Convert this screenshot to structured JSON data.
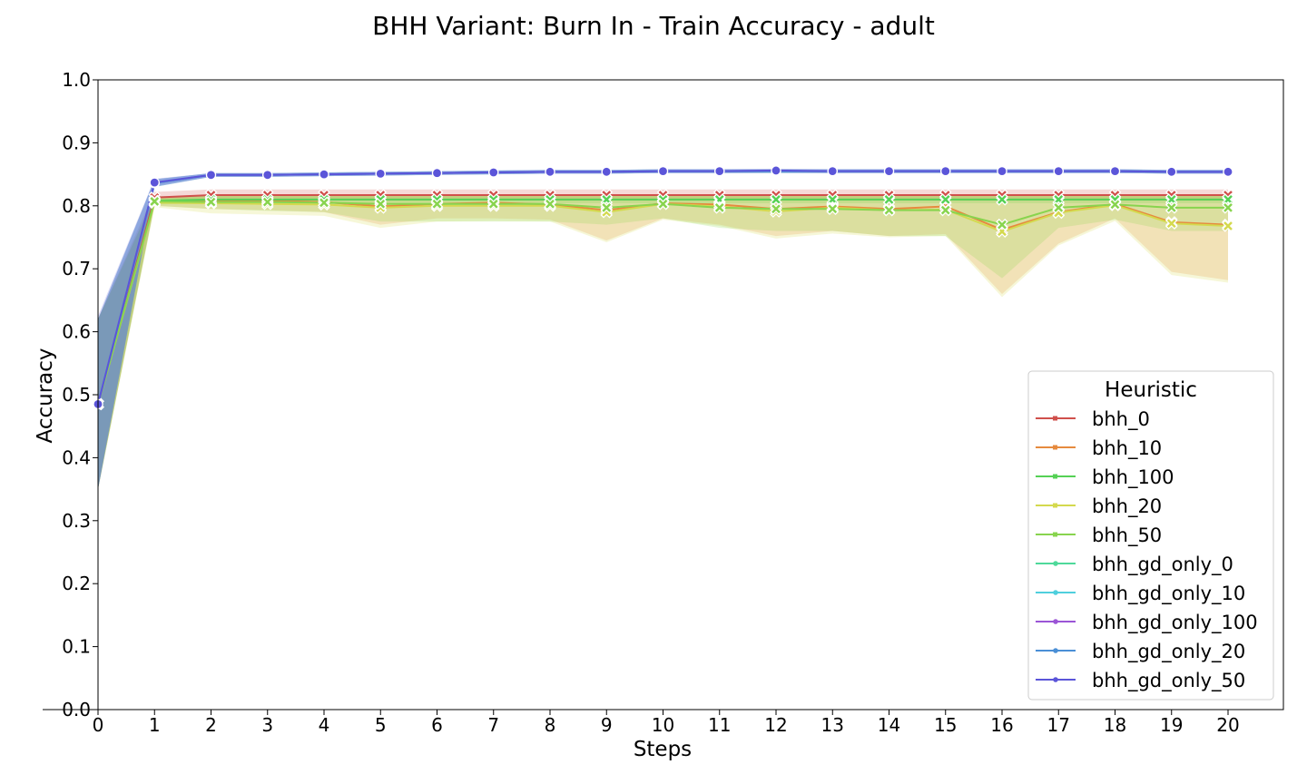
{
  "chart_data": {
    "type": "line",
    "title": "BHH Variant: Burn In - Train Accuracy - adult",
    "xlabel": "Steps",
    "ylabel": "Accuracy",
    "xlim": [
      0,
      21
    ],
    "ylim": [
      0.0,
      1.0
    ],
    "xticks": [
      0,
      1,
      2,
      3,
      4,
      5,
      6,
      7,
      8,
      9,
      10,
      11,
      12,
      13,
      14,
      15,
      16,
      17,
      18,
      19,
      20
    ],
    "yticks": [
      0.0,
      0.1,
      0.2,
      0.3,
      0.4,
      0.5,
      0.6,
      0.7,
      0.8,
      0.9,
      1.0
    ],
    "x": [
      0,
      1,
      2,
      3,
      4,
      5,
      6,
      7,
      8,
      9,
      10,
      11,
      12,
      13,
      14,
      15,
      16,
      17,
      18,
      19,
      20
    ],
    "grid": false,
    "legend": {
      "title": "Heuristic",
      "placement": "right"
    },
    "series": [
      {
        "name": "bhh_0",
        "color": "#d0504c",
        "marker": "x",
        "values": [
          0.485,
          0.813,
          0.817,
          0.817,
          0.817,
          0.817,
          0.817,
          0.817,
          0.817,
          0.817,
          0.817,
          0.817,
          0.817,
          0.817,
          0.817,
          0.817,
          0.817,
          0.817,
          0.817,
          0.817,
          0.817
        ],
        "lower": [
          0.35,
          0.805,
          0.808,
          0.808,
          0.808,
          0.808,
          0.808,
          0.808,
          0.808,
          0.808,
          0.808,
          0.808,
          0.808,
          0.808,
          0.808,
          0.808,
          0.808,
          0.808,
          0.808,
          0.808,
          0.808
        ],
        "upper": [
          0.62,
          0.822,
          0.826,
          0.826,
          0.826,
          0.826,
          0.826,
          0.826,
          0.826,
          0.826,
          0.826,
          0.826,
          0.826,
          0.826,
          0.826,
          0.826,
          0.826,
          0.826,
          0.826,
          0.826,
          0.826
        ]
      },
      {
        "name": "bhh_10",
        "color": "#e68a3e",
        "marker": "x",
        "values": [
          0.485,
          0.806,
          0.808,
          0.808,
          0.806,
          0.799,
          0.803,
          0.805,
          0.802,
          0.793,
          0.804,
          0.802,
          0.795,
          0.799,
          0.795,
          0.799,
          0.762,
          0.79,
          0.803,
          0.774,
          0.77
        ],
        "lower": [
          0.35,
          0.8,
          0.795,
          0.793,
          0.79,
          0.77,
          0.78,
          0.78,
          0.778,
          0.745,
          0.78,
          0.77,
          0.752,
          0.76,
          0.752,
          0.755,
          0.66,
          0.74,
          0.78,
          0.695,
          0.682
        ],
        "upper": [
          0.62,
          0.812,
          0.818,
          0.818,
          0.818,
          0.818,
          0.818,
          0.818,
          0.818,
          0.818,
          0.818,
          0.818,
          0.818,
          0.818,
          0.818,
          0.818,
          0.818,
          0.818,
          0.818,
          0.818,
          0.818
        ]
      },
      {
        "name": "bhh_100",
        "color": "#55d155",
        "marker": "x",
        "values": [
          0.485,
          0.808,
          0.81,
          0.81,
          0.81,
          0.81,
          0.81,
          0.81,
          0.81,
          0.81,
          0.81,
          0.81,
          0.81,
          0.81,
          0.81,
          0.81,
          0.81,
          0.81,
          0.81,
          0.81,
          0.81
        ],
        "lower": [
          0.35,
          0.802,
          0.804,
          0.804,
          0.804,
          0.804,
          0.804,
          0.804,
          0.804,
          0.804,
          0.804,
          0.804,
          0.804,
          0.804,
          0.804,
          0.804,
          0.804,
          0.804,
          0.804,
          0.804,
          0.804
        ],
        "upper": [
          0.62,
          0.815,
          0.817,
          0.817,
          0.817,
          0.817,
          0.817,
          0.817,
          0.817,
          0.817,
          0.817,
          0.817,
          0.817,
          0.817,
          0.817,
          0.817,
          0.817,
          0.817,
          0.817,
          0.817,
          0.817
        ]
      },
      {
        "name": "bhh_20",
        "color": "#d4d94e",
        "marker": "x",
        "values": [
          0.485,
          0.805,
          0.804,
          0.803,
          0.802,
          0.797,
          0.8,
          0.8,
          0.8,
          0.79,
          0.803,
          0.799,
          0.791,
          0.797,
          0.793,
          0.794,
          0.759,
          0.789,
          0.801,
          0.772,
          0.768
        ],
        "lower": [
          0.35,
          0.798,
          0.788,
          0.786,
          0.784,
          0.765,
          0.775,
          0.776,
          0.775,
          0.742,
          0.778,
          0.768,
          0.748,
          0.756,
          0.75,
          0.752,
          0.655,
          0.737,
          0.776,
          0.69,
          0.678
        ],
        "upper": [
          0.62,
          0.812,
          0.818,
          0.818,
          0.818,
          0.818,
          0.818,
          0.818,
          0.818,
          0.818,
          0.818,
          0.818,
          0.818,
          0.818,
          0.818,
          0.818,
          0.818,
          0.818,
          0.818,
          0.818,
          0.818
        ]
      },
      {
        "name": "bhh_50",
        "color": "#88d44e",
        "marker": "x",
        "values": [
          0.485,
          0.807,
          0.806,
          0.806,
          0.805,
          0.803,
          0.803,
          0.803,
          0.803,
          0.797,
          0.803,
          0.797,
          0.795,
          0.795,
          0.793,
          0.793,
          0.77,
          0.797,
          0.802,
          0.797,
          0.797
        ],
        "lower": [
          0.35,
          0.8,
          0.795,
          0.792,
          0.79,
          0.775,
          0.775,
          0.775,
          0.775,
          0.77,
          0.78,
          0.765,
          0.76,
          0.76,
          0.752,
          0.752,
          0.685,
          0.765,
          0.778,
          0.76,
          0.76
        ],
        "upper": [
          0.62,
          0.814,
          0.818,
          0.818,
          0.818,
          0.818,
          0.818,
          0.818,
          0.818,
          0.818,
          0.818,
          0.818,
          0.818,
          0.818,
          0.818,
          0.818,
          0.818,
          0.818,
          0.818,
          0.818,
          0.818
        ]
      },
      {
        "name": "bhh_gd_only_0",
        "color": "#4fd99a",
        "marker": "o",
        "values": [
          0.485,
          0.836,
          0.849,
          0.849,
          0.85,
          0.851,
          0.852,
          0.853,
          0.854,
          0.854,
          0.855,
          0.855,
          0.855,
          0.855,
          0.855,
          0.855,
          0.855,
          0.855,
          0.855,
          0.854,
          0.854
        ],
        "lower": [
          0.35,
          0.83,
          0.846,
          0.846,
          0.847,
          0.848,
          0.849,
          0.85,
          0.851,
          0.851,
          0.852,
          0.852,
          0.852,
          0.852,
          0.852,
          0.852,
          0.852,
          0.852,
          0.852,
          0.851,
          0.851
        ],
        "upper": [
          0.62,
          0.842,
          0.852,
          0.852,
          0.853,
          0.854,
          0.855,
          0.856,
          0.857,
          0.857,
          0.858,
          0.858,
          0.858,
          0.858,
          0.858,
          0.858,
          0.858,
          0.858,
          0.858,
          0.857,
          0.857
        ]
      },
      {
        "name": "bhh_gd_only_10",
        "color": "#4fcfdd",
        "marker": "o",
        "values": [
          0.485,
          0.836,
          0.849,
          0.849,
          0.85,
          0.851,
          0.852,
          0.853,
          0.854,
          0.854,
          0.855,
          0.855,
          0.855,
          0.855,
          0.855,
          0.855,
          0.855,
          0.855,
          0.855,
          0.854,
          0.854
        ],
        "lower": [
          0.35,
          0.83,
          0.846,
          0.846,
          0.847,
          0.848,
          0.849,
          0.85,
          0.851,
          0.851,
          0.852,
          0.852,
          0.852,
          0.852,
          0.852,
          0.852,
          0.852,
          0.852,
          0.852,
          0.851,
          0.851
        ],
        "upper": [
          0.62,
          0.842,
          0.852,
          0.852,
          0.853,
          0.854,
          0.855,
          0.856,
          0.857,
          0.857,
          0.858,
          0.858,
          0.858,
          0.858,
          0.858,
          0.858,
          0.858,
          0.858,
          0.858,
          0.857,
          0.857
        ]
      },
      {
        "name": "bhh_gd_only_100",
        "color": "#9b55d6",
        "marker": "o",
        "values": [
          0.485,
          0.836,
          0.849,
          0.849,
          0.85,
          0.851,
          0.852,
          0.853,
          0.854,
          0.854,
          0.855,
          0.855,
          0.855,
          0.855,
          0.855,
          0.855,
          0.855,
          0.855,
          0.855,
          0.854,
          0.854
        ],
        "lower": [
          0.35,
          0.83,
          0.846,
          0.846,
          0.847,
          0.848,
          0.849,
          0.85,
          0.851,
          0.851,
          0.852,
          0.852,
          0.852,
          0.852,
          0.852,
          0.852,
          0.852,
          0.852,
          0.852,
          0.851,
          0.851
        ],
        "upper": [
          0.62,
          0.842,
          0.852,
          0.852,
          0.853,
          0.854,
          0.855,
          0.856,
          0.857,
          0.857,
          0.858,
          0.858,
          0.858,
          0.858,
          0.858,
          0.858,
          0.858,
          0.858,
          0.858,
          0.857,
          0.857
        ]
      },
      {
        "name": "bhh_gd_only_20",
        "color": "#4a8fd6",
        "marker": "o",
        "values": [
          0.485,
          0.836,
          0.849,
          0.849,
          0.85,
          0.851,
          0.852,
          0.853,
          0.854,
          0.854,
          0.855,
          0.855,
          0.855,
          0.855,
          0.855,
          0.855,
          0.855,
          0.855,
          0.855,
          0.854,
          0.854
        ],
        "lower": [
          0.35,
          0.83,
          0.846,
          0.846,
          0.847,
          0.848,
          0.849,
          0.85,
          0.851,
          0.851,
          0.852,
          0.852,
          0.852,
          0.852,
          0.852,
          0.852,
          0.852,
          0.852,
          0.852,
          0.851,
          0.851
        ],
        "upper": [
          0.62,
          0.842,
          0.852,
          0.852,
          0.853,
          0.854,
          0.855,
          0.856,
          0.857,
          0.857,
          0.858,
          0.858,
          0.858,
          0.858,
          0.858,
          0.858,
          0.858,
          0.858,
          0.858,
          0.857,
          0.857
        ]
      },
      {
        "name": "bhh_gd_only_50",
        "color": "#5b55d9",
        "marker": "o",
        "values": [
          0.485,
          0.837,
          0.849,
          0.849,
          0.85,
          0.851,
          0.852,
          0.853,
          0.854,
          0.854,
          0.855,
          0.855,
          0.856,
          0.855,
          0.855,
          0.855,
          0.855,
          0.855,
          0.855,
          0.854,
          0.854
        ],
        "lower": [
          0.35,
          0.831,
          0.846,
          0.846,
          0.847,
          0.848,
          0.849,
          0.85,
          0.851,
          0.851,
          0.852,
          0.852,
          0.853,
          0.852,
          0.852,
          0.852,
          0.852,
          0.852,
          0.852,
          0.851,
          0.851
        ],
        "upper": [
          0.625,
          0.843,
          0.852,
          0.852,
          0.853,
          0.854,
          0.855,
          0.856,
          0.857,
          0.857,
          0.858,
          0.858,
          0.859,
          0.858,
          0.858,
          0.858,
          0.858,
          0.858,
          0.858,
          0.857,
          0.857
        ]
      }
    ]
  }
}
